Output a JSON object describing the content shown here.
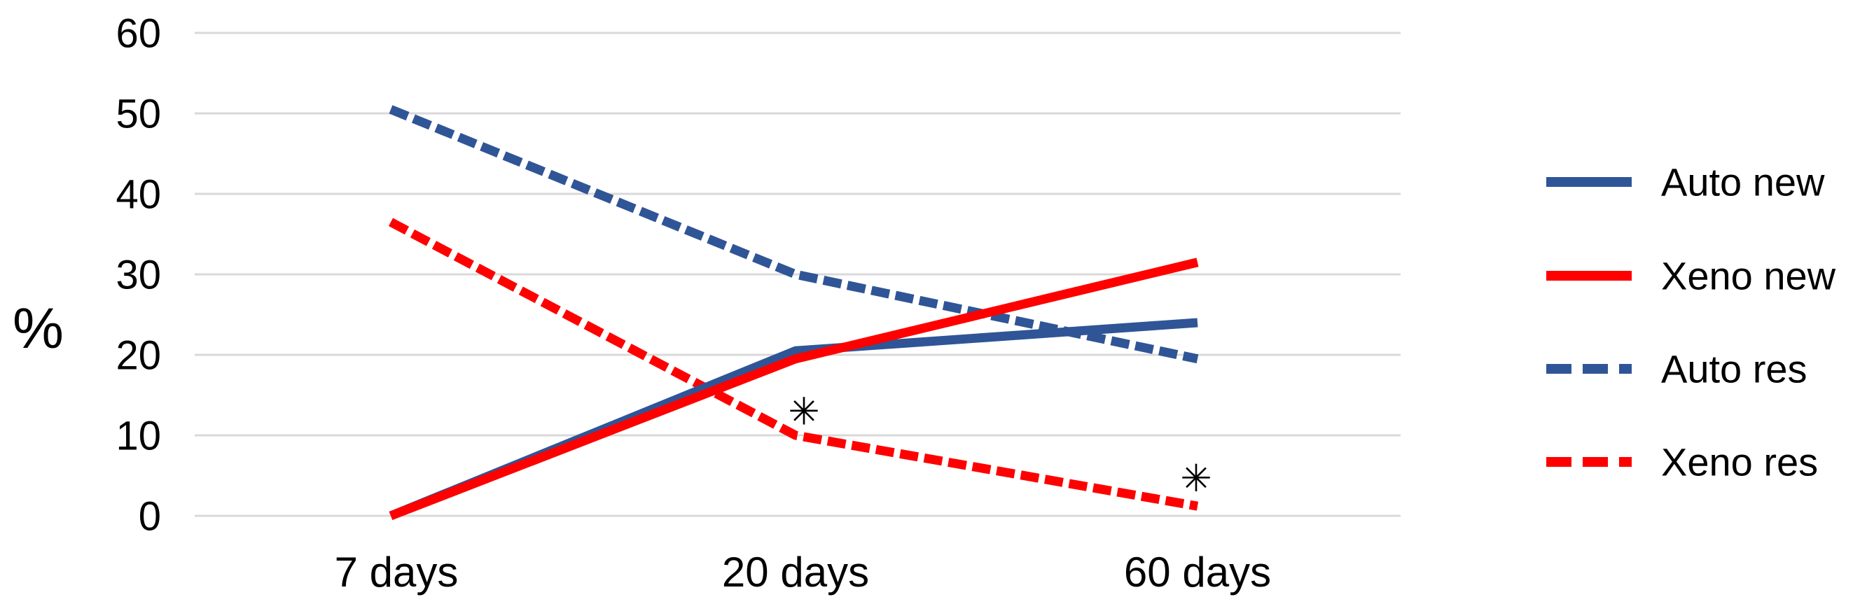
{
  "chart_data": {
    "type": "line",
    "title": "",
    "ylabel": "%",
    "categories": [
      "7 days",
      "20 days",
      "60 days"
    ],
    "yticks": [
      0,
      10,
      20,
      30,
      40,
      50,
      60
    ],
    "ylim": [
      0,
      60
    ],
    "grid": true,
    "legend_position": "right",
    "series": [
      {
        "name": "Auto new",
        "color": "#2F5597",
        "line_style": "solid",
        "values": [
          0,
          20.5,
          24
        ]
      },
      {
        "name": "Xeno new",
        "color": "#FF0000",
        "line_style": "solid",
        "values": [
          0,
          19.5,
          31.5
        ]
      },
      {
        "name": "Auto res",
        "color": "#2F5597",
        "line_style": "dashed",
        "values": [
          50.5,
          30,
          19.5
        ]
      },
      {
        "name": "Xeno res",
        "color": "#FF0000",
        "line_style": "dashed",
        "values": [
          36.5,
          10,
          1.2
        ]
      }
    ],
    "annotations": [
      {
        "symbol": "✳",
        "category": "20 days",
        "value": 13,
        "series_ref": "Xeno res"
      },
      {
        "symbol": "✳",
        "category": "60 days",
        "value": 4.7,
        "series_ref": "Xeno res"
      }
    ],
    "colors": {
      "grid": "#D9D9D9",
      "text": "#000000",
      "blue": "#2F5597",
      "red": "#FF0000",
      "annotation": "#111111"
    }
  }
}
